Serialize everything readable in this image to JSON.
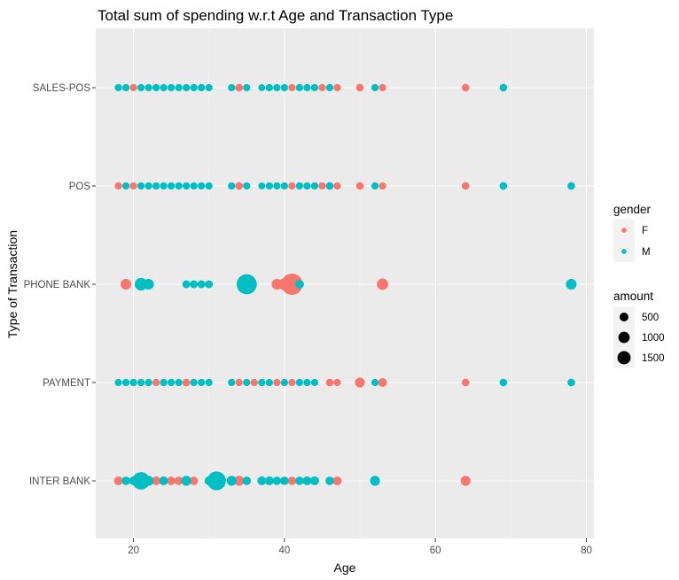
{
  "chart_data": {
    "type": "scatter",
    "title": "Total sum of spending w.r.t Age and Transaction Type",
    "xlabel": "Age",
    "ylabel": "Type of Transaction",
    "xlim": [
      15,
      81
    ],
    "x_ticks": [
      20,
      40,
      60,
      80
    ],
    "categories": [
      "INTER BANK",
      "PAYMENT",
      "PHONE BANK",
      "POS",
      "SALES-POS"
    ],
    "grid": true,
    "legend_position": "right",
    "colors": {
      "F": "#F8766D",
      "M": "#00BFC4"
    },
    "legend": {
      "gender": {
        "title": "gender",
        "entries": [
          "F",
          "M"
        ]
      },
      "amount": {
        "title": "amount",
        "entries": [
          500,
          1000,
          1500
        ]
      }
    },
    "series": [
      {
        "name": "F",
        "points": [
          {
            "x": 20,
            "y": "SALES-POS",
            "amount": 40
          },
          {
            "x": 34,
            "y": "SALES-POS",
            "amount": 50
          },
          {
            "x": 41,
            "y": "SALES-POS",
            "amount": 40
          },
          {
            "x": 45,
            "y": "SALES-POS",
            "amount": 40
          },
          {
            "x": 47,
            "y": "SALES-POS",
            "amount": 40
          },
          {
            "x": 50,
            "y": "SALES-POS",
            "amount": 50
          },
          {
            "x": 53,
            "y": "SALES-POS",
            "amount": 40
          },
          {
            "x": 64,
            "y": "SALES-POS",
            "amount": 50
          },
          {
            "x": 18,
            "y": "POS",
            "amount": 40
          },
          {
            "x": 20,
            "y": "POS",
            "amount": 40
          },
          {
            "x": 34,
            "y": "POS",
            "amount": 50
          },
          {
            "x": 41,
            "y": "POS",
            "amount": 40
          },
          {
            "x": 45,
            "y": "POS",
            "amount": 40
          },
          {
            "x": 47,
            "y": "POS",
            "amount": 40
          },
          {
            "x": 50,
            "y": "POS",
            "amount": 50
          },
          {
            "x": 53,
            "y": "POS",
            "amount": 40
          },
          {
            "x": 64,
            "y": "POS",
            "amount": 50
          },
          {
            "x": 19,
            "y": "PHONE BANK",
            "amount": 200
          },
          {
            "x": 39,
            "y": "PHONE BANK",
            "amount": 200
          },
          {
            "x": 40,
            "y": "PHONE BANK",
            "amount": 300
          },
          {
            "x": 41,
            "y": "PHONE BANK",
            "amount": 1500
          },
          {
            "x": 53,
            "y": "PHONE BANK",
            "amount": 250
          },
          {
            "x": 23,
            "y": "PAYMENT",
            "amount": 40
          },
          {
            "x": 27,
            "y": "PAYMENT",
            "amount": 50
          },
          {
            "x": 34,
            "y": "PAYMENT",
            "amount": 40
          },
          {
            "x": 36,
            "y": "PAYMENT",
            "amount": 40
          },
          {
            "x": 39,
            "y": "PAYMENT",
            "amount": 40
          },
          {
            "x": 41,
            "y": "PAYMENT",
            "amount": 40
          },
          {
            "x": 46,
            "y": "PAYMENT",
            "amount": 50
          },
          {
            "x": 47,
            "y": "PAYMENT",
            "amount": 40
          },
          {
            "x": 50,
            "y": "PAYMENT",
            "amount": 150
          },
          {
            "x": 53,
            "y": "PAYMENT",
            "amount": 100
          },
          {
            "x": 64,
            "y": "PAYMENT",
            "amount": 50
          },
          {
            "x": 18,
            "y": "INTER BANK",
            "amount": 100
          },
          {
            "x": 23,
            "y": "INTER BANK",
            "amount": 100
          },
          {
            "x": 25,
            "y": "INTER BANK",
            "amount": 80
          },
          {
            "x": 26,
            "y": "INTER BANK",
            "amount": 80
          },
          {
            "x": 28,
            "y": "INTER BANK",
            "amount": 80
          },
          {
            "x": 34,
            "y": "INTER BANK",
            "amount": 150
          },
          {
            "x": 38,
            "y": "INTER BANK",
            "amount": 80
          },
          {
            "x": 41,
            "y": "INTER BANK",
            "amount": 80
          },
          {
            "x": 46,
            "y": "INTER BANK",
            "amount": 80
          },
          {
            "x": 47,
            "y": "INTER BANK",
            "amount": 100
          },
          {
            "x": 64,
            "y": "INTER BANK",
            "amount": 150
          }
        ]
      },
      {
        "name": "M",
        "points": [
          {
            "x": 18,
            "y": "SALES-POS",
            "amount": 40
          },
          {
            "x": 19,
            "y": "SALES-POS",
            "amount": 40
          },
          {
            "x": 21,
            "y": "SALES-POS",
            "amount": 40
          },
          {
            "x": 22,
            "y": "SALES-POS",
            "amount": 40
          },
          {
            "x": 23,
            "y": "SALES-POS",
            "amount": 40
          },
          {
            "x": 24,
            "y": "SALES-POS",
            "amount": 40
          },
          {
            "x": 25,
            "y": "SALES-POS",
            "amount": 40
          },
          {
            "x": 26,
            "y": "SALES-POS",
            "amount": 40
          },
          {
            "x": 27,
            "y": "SALES-POS",
            "amount": 40
          },
          {
            "x": 28,
            "y": "SALES-POS",
            "amount": 40
          },
          {
            "x": 29,
            "y": "SALES-POS",
            "amount": 40
          },
          {
            "x": 30,
            "y": "SALES-POS",
            "amount": 40
          },
          {
            "x": 33,
            "y": "SALES-POS",
            "amount": 40
          },
          {
            "x": 35,
            "y": "SALES-POS",
            "amount": 40
          },
          {
            "x": 37,
            "y": "SALES-POS",
            "amount": 30
          },
          {
            "x": 38,
            "y": "SALES-POS",
            "amount": 40
          },
          {
            "x": 39,
            "y": "SALES-POS",
            "amount": 40
          },
          {
            "x": 40,
            "y": "SALES-POS",
            "amount": 40
          },
          {
            "x": 42,
            "y": "SALES-POS",
            "amount": 40
          },
          {
            "x": 43,
            "y": "SALES-POS",
            "amount": 40
          },
          {
            "x": 44,
            "y": "SALES-POS",
            "amount": 40
          },
          {
            "x": 46,
            "y": "SALES-POS",
            "amount": 40
          },
          {
            "x": 52,
            "y": "SALES-POS",
            "amount": 40
          },
          {
            "x": 69,
            "y": "SALES-POS",
            "amount": 50
          },
          {
            "x": 19,
            "y": "POS",
            "amount": 40
          },
          {
            "x": 21,
            "y": "POS",
            "amount": 40
          },
          {
            "x": 22,
            "y": "POS",
            "amount": 40
          },
          {
            "x": 23,
            "y": "POS",
            "amount": 40
          },
          {
            "x": 24,
            "y": "POS",
            "amount": 40
          },
          {
            "x": 25,
            "y": "POS",
            "amount": 40
          },
          {
            "x": 26,
            "y": "POS",
            "amount": 40
          },
          {
            "x": 27,
            "y": "POS",
            "amount": 40
          },
          {
            "x": 28,
            "y": "POS",
            "amount": 40
          },
          {
            "x": 29,
            "y": "POS",
            "amount": 40
          },
          {
            "x": 30,
            "y": "POS",
            "amount": 40
          },
          {
            "x": 33,
            "y": "POS",
            "amount": 40
          },
          {
            "x": 35,
            "y": "POS",
            "amount": 40
          },
          {
            "x": 37,
            "y": "POS",
            "amount": 30
          },
          {
            "x": 38,
            "y": "POS",
            "amount": 40
          },
          {
            "x": 39,
            "y": "POS",
            "amount": 40
          },
          {
            "x": 40,
            "y": "POS",
            "amount": 40
          },
          {
            "x": 42,
            "y": "POS",
            "amount": 40
          },
          {
            "x": 43,
            "y": "POS",
            "amount": 40
          },
          {
            "x": 44,
            "y": "POS",
            "amount": 40
          },
          {
            "x": 46,
            "y": "POS",
            "amount": 50
          },
          {
            "x": 52,
            "y": "POS",
            "amount": 40
          },
          {
            "x": 69,
            "y": "POS",
            "amount": 50
          },
          {
            "x": 78,
            "y": "POS",
            "amount": 50
          },
          {
            "x": 21,
            "y": "PHONE BANK",
            "amount": 350
          },
          {
            "x": 22,
            "y": "PHONE BANK",
            "amount": 200
          },
          {
            "x": 27,
            "y": "PHONE BANK",
            "amount": 60
          },
          {
            "x": 28,
            "y": "PHONE BANK",
            "amount": 60
          },
          {
            "x": 29,
            "y": "PHONE BANK",
            "amount": 60
          },
          {
            "x": 30,
            "y": "PHONE BANK",
            "amount": 60
          },
          {
            "x": 35,
            "y": "PHONE BANK",
            "amount": 1300
          },
          {
            "x": 42,
            "y": "PHONE BANK",
            "amount": 100
          },
          {
            "x": 78,
            "y": "PHONE BANK",
            "amount": 200
          },
          {
            "x": 18,
            "y": "PAYMENT",
            "amount": 40
          },
          {
            "x": 19,
            "y": "PAYMENT",
            "amount": 40
          },
          {
            "x": 20,
            "y": "PAYMENT",
            "amount": 40
          },
          {
            "x": 21,
            "y": "PAYMENT",
            "amount": 40
          },
          {
            "x": 22,
            "y": "PAYMENT",
            "amount": 40
          },
          {
            "x": 24,
            "y": "PAYMENT",
            "amount": 40
          },
          {
            "x": 25,
            "y": "PAYMENT",
            "amount": 40
          },
          {
            "x": 26,
            "y": "PAYMENT",
            "amount": 40
          },
          {
            "x": 28,
            "y": "PAYMENT",
            "amount": 40
          },
          {
            "x": 29,
            "y": "PAYMENT",
            "amount": 40
          },
          {
            "x": 30,
            "y": "PAYMENT",
            "amount": 40
          },
          {
            "x": 33,
            "y": "PAYMENT",
            "amount": 40
          },
          {
            "x": 35,
            "y": "PAYMENT",
            "amount": 40
          },
          {
            "x": 37,
            "y": "PAYMENT",
            "amount": 40
          },
          {
            "x": 38,
            "y": "PAYMENT",
            "amount": 40
          },
          {
            "x": 40,
            "y": "PAYMENT",
            "amount": 40
          },
          {
            "x": 42,
            "y": "PAYMENT",
            "amount": 40
          },
          {
            "x": 43,
            "y": "PAYMENT",
            "amount": 40
          },
          {
            "x": 44,
            "y": "PAYMENT",
            "amount": 40
          },
          {
            "x": 52,
            "y": "PAYMENT",
            "amount": 40
          },
          {
            "x": 69,
            "y": "PAYMENT",
            "amount": 50
          },
          {
            "x": 78,
            "y": "PAYMENT",
            "amount": 50
          },
          {
            "x": 19,
            "y": "INTER BANK",
            "amount": 80
          },
          {
            "x": 20,
            "y": "INTER BANK",
            "amount": 100
          },
          {
            "x": 21,
            "y": "INTER BANK",
            "amount": 900
          },
          {
            "x": 22,
            "y": "INTER BANK",
            "amount": 150
          },
          {
            "x": 24,
            "y": "INTER BANK",
            "amount": 100
          },
          {
            "x": 27,
            "y": "INTER BANK",
            "amount": 150
          },
          {
            "x": 30,
            "y": "INTER BANK",
            "amount": 100
          },
          {
            "x": 31,
            "y": "INTER BANK",
            "amount": 1100
          },
          {
            "x": 33,
            "y": "INTER BANK",
            "amount": 150
          },
          {
            "x": 35,
            "y": "INTER BANK",
            "amount": 80
          },
          {
            "x": 37,
            "y": "INTER BANK",
            "amount": 100
          },
          {
            "x": 38,
            "y": "INTER BANK",
            "amount": 100
          },
          {
            "x": 39,
            "y": "INTER BANK",
            "amount": 80
          },
          {
            "x": 40,
            "y": "INTER BANK",
            "amount": 80
          },
          {
            "x": 42,
            "y": "INTER BANK",
            "amount": 80
          },
          {
            "x": 43,
            "y": "INTER BANK",
            "amount": 100
          },
          {
            "x": 44,
            "y": "INTER BANK",
            "amount": 100
          },
          {
            "x": 46,
            "y": "INTER BANK",
            "amount": 80
          },
          {
            "x": 52,
            "y": "INTER BANK",
            "amount": 150
          }
        ]
      }
    ]
  }
}
